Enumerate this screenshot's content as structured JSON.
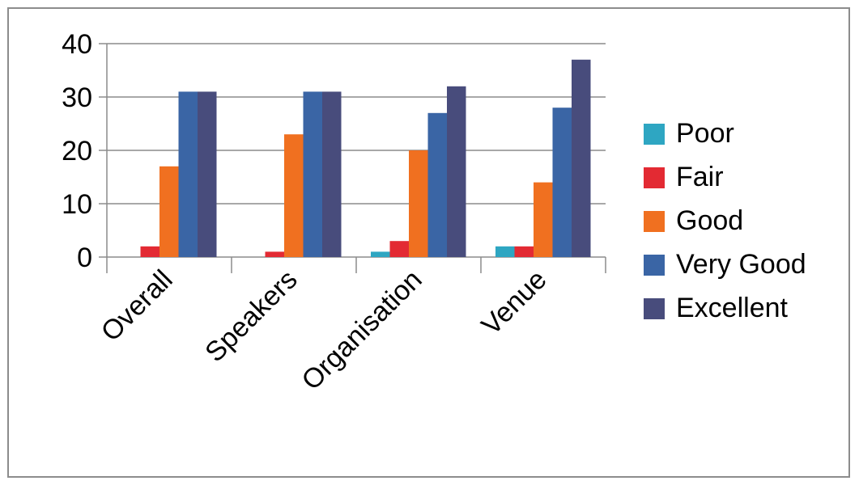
{
  "chart_data": {
    "type": "bar",
    "title": "",
    "xlabel": "",
    "ylabel": "",
    "categories": [
      "Overall",
      "Speakers",
      "Organisation",
      "Venue"
    ],
    "ylim": [
      0,
      40
    ],
    "yticks": [
      0,
      10,
      20,
      30,
      40
    ],
    "grid": true,
    "legend_position": "right",
    "series": [
      {
        "name": "Poor",
        "color": "#2ea6c2",
        "values": [
          0,
          0,
          1,
          2
        ]
      },
      {
        "name": "Fair",
        "color": "#e32a33",
        "values": [
          2,
          1,
          3,
          2
        ]
      },
      {
        "name": "Good",
        "color": "#f07020",
        "values": [
          17,
          23,
          20,
          14
        ]
      },
      {
        "name": "Very Good",
        "color": "#3a65a5",
        "values": [
          31,
          31,
          27,
          28
        ]
      },
      {
        "name": "Excellent",
        "color": "#484c7c",
        "values": [
          31,
          31,
          32,
          37
        ]
      }
    ]
  }
}
